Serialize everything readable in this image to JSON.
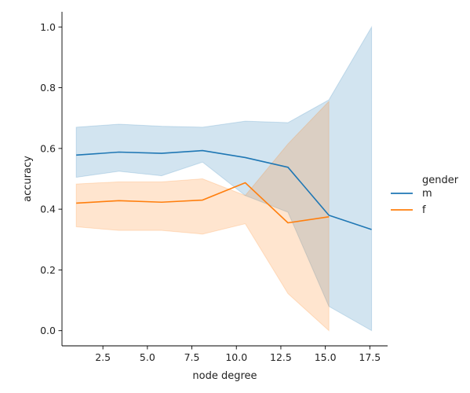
{
  "chart_data": {
    "type": "line",
    "title": "",
    "xlabel": "node degree",
    "ylabel": "accuracy",
    "xlim": [
      0.2,
      18.5
    ],
    "ylim": [
      -0.05,
      1.05
    ],
    "xticks": [
      2.5,
      5.0,
      7.5,
      10.0,
      12.5,
      15.0,
      17.5
    ],
    "xtick_labels": [
      "2.5",
      "5.0",
      "7.5",
      "10.0",
      "12.5",
      "15.0",
      "17.5"
    ],
    "yticks": [
      0.0,
      0.2,
      0.4,
      0.6,
      0.8,
      1.0
    ],
    "ytick_labels": [
      "0.0",
      "0.2",
      "0.4",
      "0.6",
      "0.8",
      "1.0"
    ],
    "grid": false,
    "legend": {
      "title": "gender",
      "placement": "right"
    },
    "series": [
      {
        "name": "m",
        "color": "#1f77b4",
        "x": [
          1.0,
          3.4,
          5.8,
          8.1,
          10.5,
          12.9,
          15.2,
          17.6
        ],
        "y": [
          0.578,
          0.588,
          0.584,
          0.593,
          0.57,
          0.538,
          0.38,
          0.333
        ],
        "ci_lower": [
          0.505,
          0.525,
          0.51,
          0.555,
          0.445,
          0.39,
          0.08,
          0.0
        ],
        "ci_upper": [
          0.67,
          0.68,
          0.673,
          0.67,
          0.69,
          0.685,
          0.76,
          1.0
        ]
      },
      {
        "name": "f",
        "color": "#ff7f0e",
        "x": [
          1.0,
          3.4,
          5.8,
          8.1,
          10.5,
          12.9,
          15.2
        ],
        "y": [
          0.42,
          0.428,
          0.423,
          0.43,
          0.487,
          0.355,
          0.375
        ],
        "ci_lower": [
          0.342,
          0.33,
          0.33,
          0.318,
          0.352,
          0.122,
          0.0
        ],
        "ci_upper": [
          0.483,
          0.49,
          0.49,
          0.5,
          0.445,
          0.615,
          0.755
        ]
      }
    ]
  }
}
